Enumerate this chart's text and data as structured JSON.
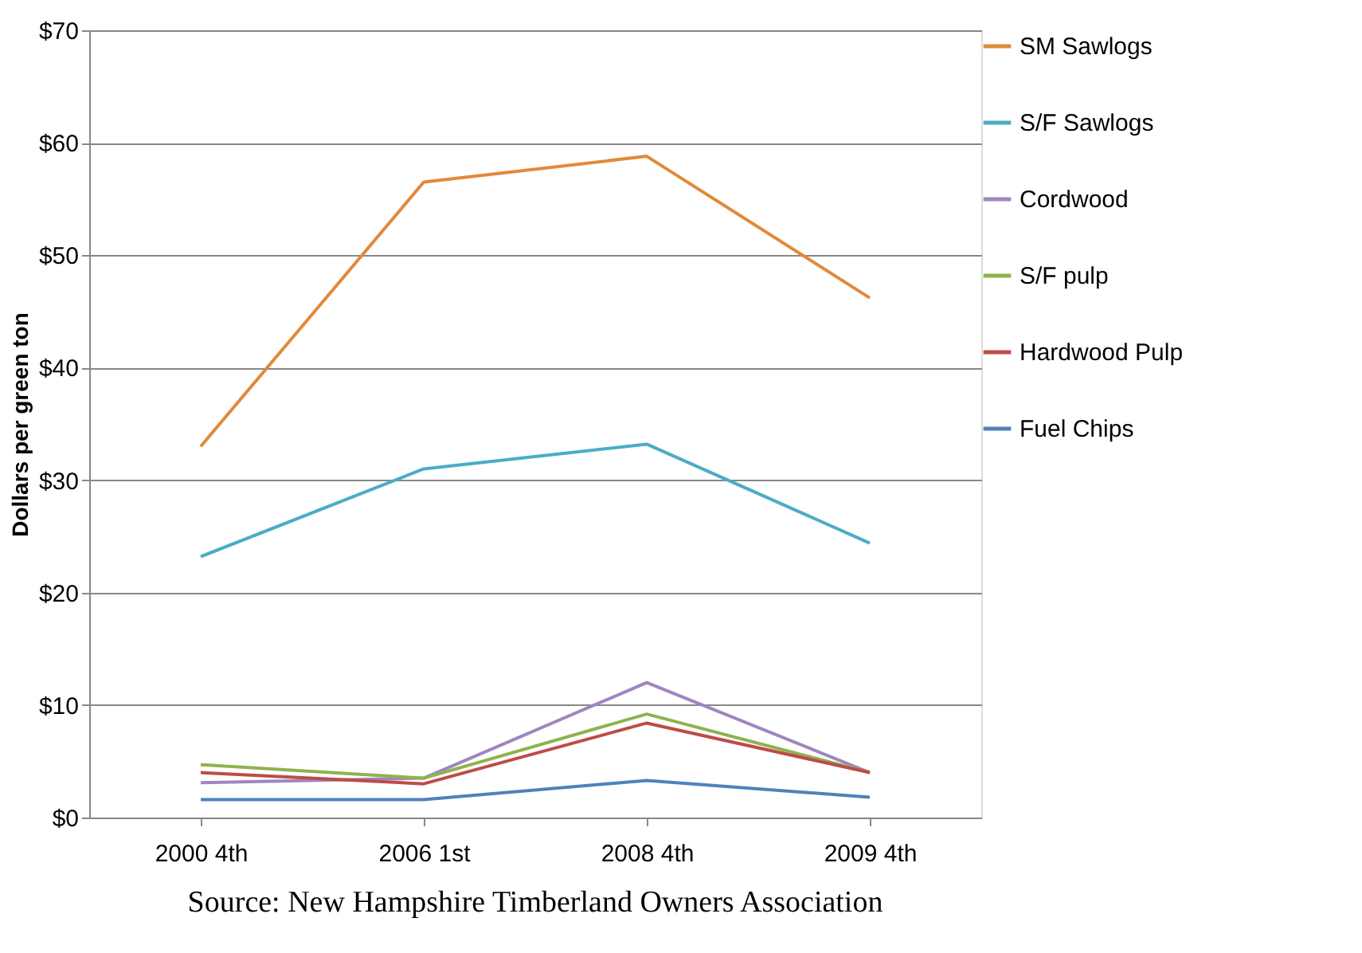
{
  "chart_data": {
    "type": "line",
    "ylabel": "Dollars per green ton",
    "categories": [
      "2000 4th",
      "2006 1st",
      "2008 4th",
      "2009 4th"
    ],
    "series": [
      {
        "name": "SM Sawlogs",
        "color": "#e2893b",
        "values": [
          33.0,
          56.5,
          58.8,
          46.2
        ]
      },
      {
        "name": "S/F Sawlogs",
        "color": "#4bacc6",
        "values": [
          23.2,
          31.0,
          33.2,
          24.4
        ]
      },
      {
        "name": "Cordwood",
        "color": "#9e86c0",
        "values": [
          3.1,
          3.5,
          12.0,
          4.0
        ]
      },
      {
        "name": "S/F pulp",
        "color": "#8fb24e",
        "values": [
          4.7,
          3.5,
          9.2,
          4.0
        ]
      },
      {
        "name": "Hardwood Pulp",
        "color": "#be4b48",
        "values": [
          4.0,
          3.0,
          8.4,
          4.0
        ]
      },
      {
        "name": "Fuel Chips",
        "color": "#4f81bd",
        "values": [
          1.6,
          1.6,
          3.3,
          1.8
        ]
      }
    ],
    "ylim": [
      0,
      70
    ],
    "yticks": [
      {
        "value": 0,
        "label": "$0"
      },
      {
        "value": 10,
        "label": "$10"
      },
      {
        "value": 20,
        "label": "$20"
      },
      {
        "value": 30,
        "label": "$30"
      },
      {
        "value": 40,
        "label": "$40"
      },
      {
        "value": 50,
        "label": "$50"
      },
      {
        "value": 60,
        "label": "$60"
      },
      {
        "value": 70,
        "label": "$70"
      }
    ],
    "grid": "y",
    "legend": "right",
    "marker": "none",
    "line_style": "solid",
    "annotations": [
      "Source: New Hampshire Timberland Owners Association"
    ]
  }
}
